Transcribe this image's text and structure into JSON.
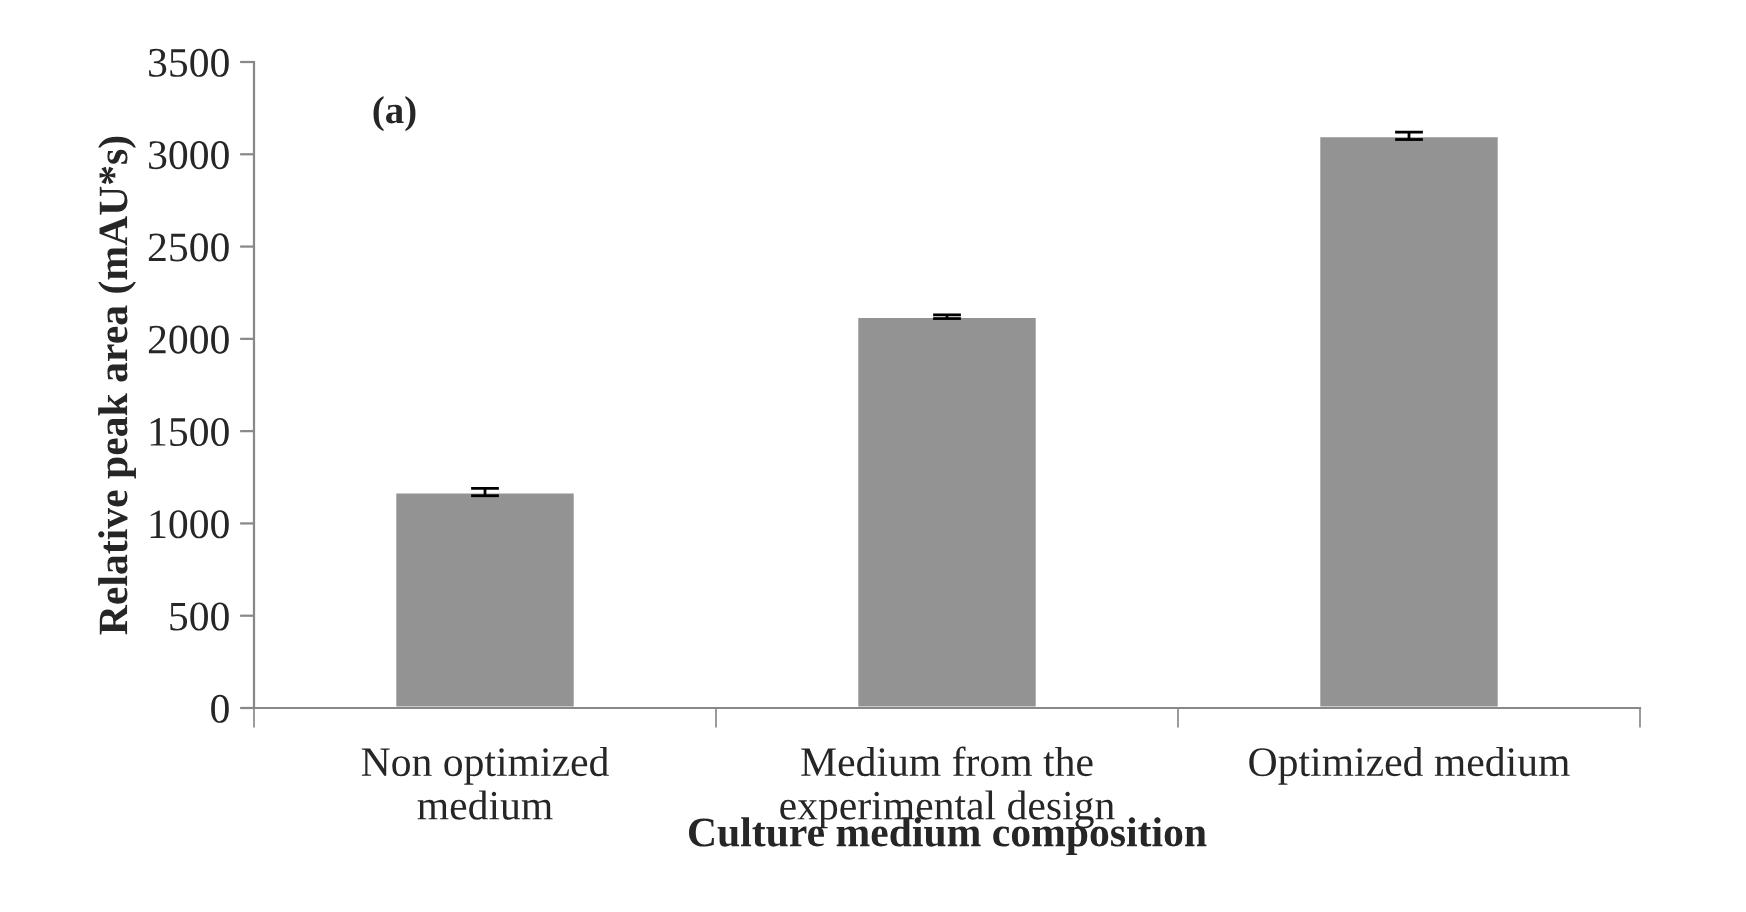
{
  "chart_data": {
    "type": "bar",
    "xlabel": "Culture medium composition",
    "ylabel": "Relative peak area (mAU*s)",
    "categories": [
      "Non optimized\nmedium",
      "Medium from the\nexperimental design",
      "Optimized medium"
    ],
    "values": [
      1170,
      2120,
      3100
    ],
    "errors": [
      20,
      10,
      20
    ],
    "color": "#939393",
    "ylim": [
      0,
      3500
    ],
    "yticks": [
      0,
      500,
      1000,
      1500,
      2000,
      2500,
      3000,
      3500
    ],
    "grid": false,
    "legend": false,
    "annotations": [
      "(a)"
    ]
  }
}
